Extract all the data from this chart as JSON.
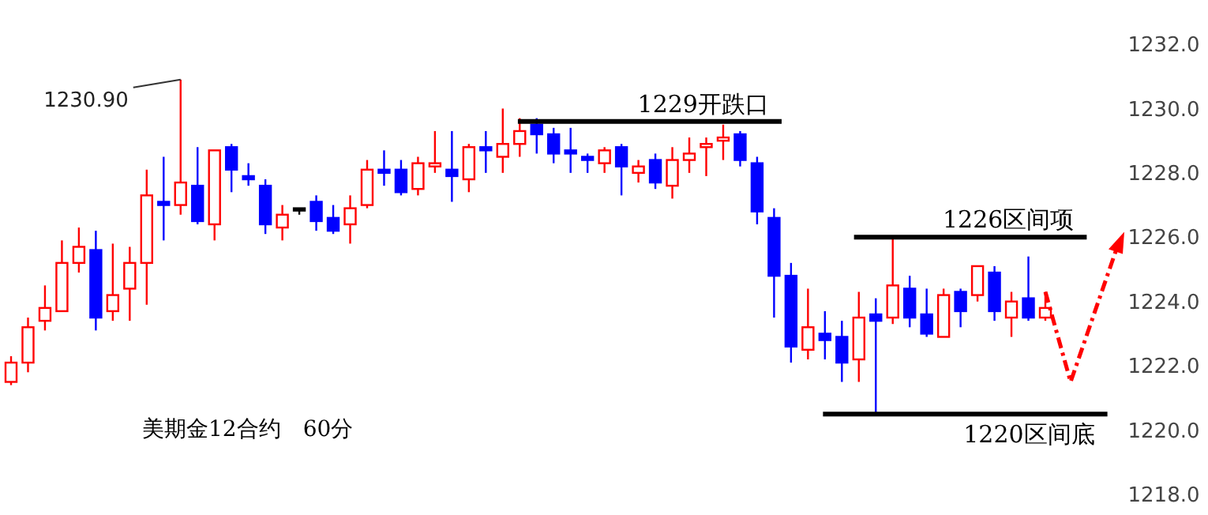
{
  "chart_data": {
    "type": "candlestick",
    "categories": [
      null,
      null,
      null,
      null,
      null,
      null,
      null,
      null,
      null,
      null,
      null,
      null,
      null,
      null,
      null,
      null,
      null,
      null,
      null,
      null,
      null,
      null,
      null,
      null,
      null,
      null,
      null,
      null,
      null,
      null,
      null,
      null,
      null,
      null,
      null,
      null,
      null,
      null,
      null,
      null,
      null,
      null,
      null,
      null,
      null,
      null,
      null,
      null,
      null,
      null,
      null,
      null,
      null,
      null,
      null,
      null,
      null,
      null,
      null,
      null,
      null,
      null
    ],
    "ohlc": [
      [
        1221.5,
        1222.3,
        1221.4,
        1222.1
      ],
      [
        1222.1,
        1223.5,
        1221.8,
        1223.2
      ],
      [
        1223.4,
        1224.5,
        1223.1,
        1223.8
      ],
      [
        1223.7,
        1225.9,
        1223.7,
        1225.2
      ],
      [
        1225.2,
        1226.3,
        1224.9,
        1225.7
      ],
      [
        1225.6,
        1226.2,
        1223.1,
        1223.5
      ],
      [
        1223.7,
        1225.8,
        1223.4,
        1224.2
      ],
      [
        1224.4,
        1225.7,
        1223.4,
        1225.2
      ],
      [
        1225.2,
        1228.1,
        1223.9,
        1227.3
      ],
      [
        1227.1,
        1228.5,
        1225.9,
        1227.0
      ],
      [
        1227.0,
        1230.9,
        1226.7,
        1227.7
      ],
      [
        1227.6,
        1228.8,
        1226.4,
        1226.5
      ],
      [
        1226.4,
        1228.7,
        1225.9,
        1228.7
      ],
      [
        1228.8,
        1228.9,
        1227.4,
        1228.1
      ],
      [
        1227.9,
        1228.3,
        1227.6,
        1227.8
      ],
      [
        1227.6,
        1227.8,
        1226.1,
        1226.4
      ],
      [
        1226.3,
        1227.0,
        1225.9,
        1226.7
      ],
      [
        1226.9,
        1226.9,
        1226.7,
        1226.9
      ],
      [
        1227.1,
        1227.3,
        1226.2,
        1226.5
      ],
      [
        1226.6,
        1227.0,
        1226.1,
        1226.2
      ],
      [
        1226.4,
        1227.3,
        1225.8,
        1226.9
      ],
      [
        1227.0,
        1228.4,
        1226.9,
        1228.1
      ],
      [
        1228.1,
        1228.7,
        1227.6,
        1228.0
      ],
      [
        1228.1,
        1228.4,
        1227.3,
        1227.4
      ],
      [
        1227.5,
        1228.5,
        1227.3,
        1228.3
      ],
      [
        1228.2,
        1229.3,
        1228.0,
        1228.3
      ],
      [
        1228.1,
        1229.3,
        1227.1,
        1227.9
      ],
      [
        1227.8,
        1228.9,
        1227.4,
        1228.8
      ],
      [
        1228.8,
        1229.3,
        1228.0,
        1228.7
      ],
      [
        1228.5,
        1230.0,
        1228.0,
        1228.9
      ],
      [
        1228.9,
        1229.7,
        1228.5,
        1229.3
      ],
      [
        1229.5,
        1229.7,
        1228.6,
        1229.2
      ],
      [
        1229.2,
        1229.4,
        1228.3,
        1228.6
      ],
      [
        1228.7,
        1229.4,
        1228.0,
        1228.6
      ],
      [
        1228.5,
        1228.6,
        1228.0,
        1228.4
      ],
      [
        1228.3,
        1228.8,
        1228.0,
        1228.7
      ],
      [
        1228.8,
        1228.9,
        1227.3,
        1228.2
      ],
      [
        1228.0,
        1228.4,
        1227.7,
        1228.2
      ],
      [
        1228.4,
        1228.6,
        1227.5,
        1227.7
      ],
      [
        1227.6,
        1228.8,
        1227.2,
        1228.4
      ],
      [
        1228.4,
        1229.1,
        1228.0,
        1228.6
      ],
      [
        1228.8,
        1229.1,
        1227.9,
        1228.9
      ],
      [
        1229.0,
        1229.5,
        1228.4,
        1229.1
      ],
      [
        1229.2,
        1229.3,
        1228.2,
        1228.4
      ],
      [
        1228.3,
        1228.5,
        1226.4,
        1226.8
      ],
      [
        1226.6,
        1226.9,
        1223.5,
        1224.8
      ],
      [
        1224.8,
        1225.2,
        1222.1,
        1222.6
      ],
      [
        1222.5,
        1224.4,
        1222.2,
        1223.2
      ],
      [
        1223.0,
        1223.7,
        1222.2,
        1222.8
      ],
      [
        1222.9,
        1223.4,
        1221.5,
        1222.1
      ],
      [
        1222.2,
        1224.3,
        1221.5,
        1223.5
      ],
      [
        1223.6,
        1224.1,
        1220.5,
        1223.4
      ],
      [
        1223.5,
        1226.0,
        1223.3,
        1224.5
      ],
      [
        1224.4,
        1224.8,
        1223.2,
        1223.5
      ],
      [
        1223.6,
        1224.4,
        1222.9,
        1223.0
      ],
      [
        1222.9,
        1224.4,
        1222.9,
        1224.2
      ],
      [
        1224.3,
        1224.4,
        1223.2,
        1223.7
      ],
      [
        1224.2,
        1225.1,
        1224.0,
        1225.1
      ],
      [
        1224.9,
        1225.1,
        1223.4,
        1223.7
      ],
      [
        1223.5,
        1224.3,
        1222.9,
        1224.0
      ],
      [
        1224.1,
        1225.4,
        1223.4,
        1223.5
      ],
      [
        1223.5,
        1224.3,
        1223.4,
        1223.8
      ]
    ],
    "colors": [
      "#ff0000",
      "#ff0000",
      "#ff0000",
      "#ff0000",
      "#ff0000",
      "#0000ff",
      "#ff0000",
      "#ff0000",
      "#ff0000",
      "#0000ff",
      "#ff0000",
      "#0000ff",
      "#ff0000",
      "#0000ff",
      "#0000ff",
      "#0000ff",
      "#ff0000",
      "#000000",
      "#0000ff",
      "#0000ff",
      "#ff0000",
      "#ff0000",
      "#0000ff",
      "#0000ff",
      "#ff0000",
      "#ff0000",
      "#0000ff",
      "#ff0000",
      "#0000ff",
      "#ff0000",
      "#ff0000",
      "#0000ff",
      "#0000ff",
      "#0000ff",
      "#0000ff",
      "#ff0000",
      "#0000ff",
      "#ff0000",
      "#0000ff",
      "#ff0000",
      "#ff0000",
      "#ff0000",
      "#ff0000",
      "#0000ff",
      "#0000ff",
      "#0000ff",
      "#0000ff",
      "#ff0000",
      "#0000ff",
      "#0000ff",
      "#ff0000",
      "#0000ff",
      "#ff0000",
      "#0000ff",
      "#0000ff",
      "#ff0000",
      "#0000ff",
      "#ff0000",
      "#0000ff",
      "#ff0000",
      "#0000ff",
      "#ff0000"
    ],
    "ylim": [
      1218,
      1232
    ],
    "yticks": [
      {
        "value": 1218,
        "label": "1218.0"
      },
      {
        "value": 1220,
        "label": "1220.0"
      },
      {
        "value": 1222,
        "label": "1222.0"
      },
      {
        "value": 1224,
        "label": "1224.0"
      },
      {
        "value": 1226,
        "label": "1226.0"
      },
      {
        "value": 1228,
        "label": "1228.0"
      },
      {
        "value": 1230,
        "label": "1230.0"
      },
      {
        "value": 1232,
        "label": "1232.0"
      }
    ],
    "ref_lines": [
      {
        "axis": "y",
        "value": 1229.6,
        "label": "1229开跌口",
        "color": "#000000"
      },
      {
        "axis": "y",
        "value": 1226.0,
        "label": "1226区间项",
        "color": "#000000"
      },
      {
        "axis": "y",
        "value": 1220.5,
        "label": "1220区间底",
        "color": "#000000"
      }
    ],
    "annotations": [
      "1230.90",
      "美期金12合约　60分"
    ],
    "grid": false
  }
}
